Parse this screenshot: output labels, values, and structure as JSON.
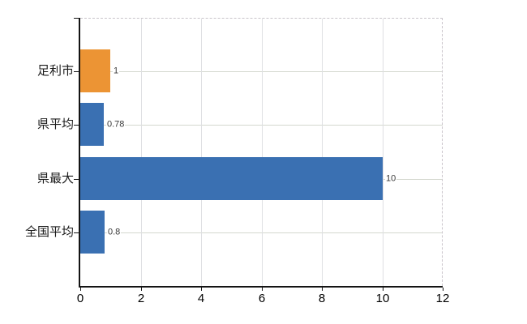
{
  "chart_data": {
    "type": "bar",
    "orientation": "horizontal",
    "title": "",
    "xlabel": "",
    "ylabel": "",
    "categories": [
      "足利市",
      "県平均",
      "県最大",
      "全国平均"
    ],
    "values": [
      1,
      0.78,
      10,
      0.8
    ],
    "value_labels": [
      "1",
      "0.78",
      "10",
      "0.8"
    ],
    "bar_colors": [
      "#EC9434",
      "#3A70B2",
      "#3A70B2",
      "#3A70B2"
    ],
    "x_ticks": [
      0,
      2,
      4,
      6,
      8,
      10,
      12
    ],
    "xlim": [
      0,
      12
    ],
    "grid": true,
    "legend_position": "none",
    "colors": {
      "background": "#FFFFFF",
      "bar_highlight": "#EC9434",
      "bar_default": "#3A70B2",
      "gridline_horizontal": "#D4D8CF",
      "gridline_vertical": "#DEDFE2",
      "frame_dashed": "#C9C4CA",
      "axis": "#141414",
      "category_text": "#1A1A1A",
      "tick_text": "#000000",
      "value_text": "#3A3A3A"
    }
  }
}
